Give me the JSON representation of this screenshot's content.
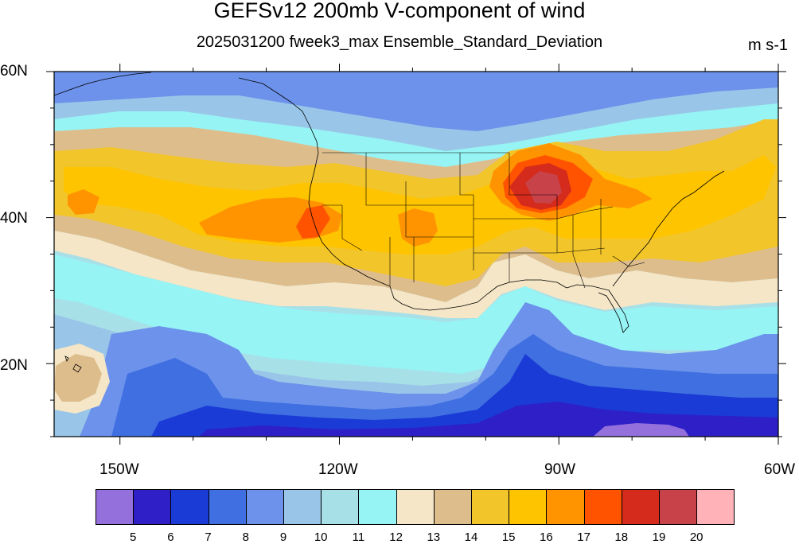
{
  "title": "GEFSv12 200mb V-component of wind",
  "subtitle": "2025031200 fweek3_max Ensemble_Standard_Deviation",
  "units": "m s-1",
  "lat_labels": [
    "60N",
    "40N",
    "20N"
  ],
  "lon_labels": [
    "150W",
    "120W",
    "90W",
    "60W"
  ],
  "colorbar": {
    "colors": [
      "#9370DB",
      "#2E1FC7",
      "#1A3BD6",
      "#3F6FE0",
      "#6C92EB",
      "#99C6E8",
      "#A8E0E8",
      "#96F4F4",
      "#F4E6C6",
      "#DEBD8D",
      "#F2C52A",
      "#FFC400",
      "#FF9400",
      "#FF5300",
      "#D52B1C",
      "#C8424A",
      "#FFB3B8"
    ],
    "labels": [
      "5",
      "6",
      "7",
      "8",
      "9",
      "10",
      "11",
      "12",
      "13",
      "14",
      "15",
      "16",
      "17",
      "18",
      "19",
      "20"
    ]
  },
  "map": {
    "projection": "cylindrical-equidistant",
    "lon_range": [
      "159W",
      "60W"
    ],
    "lat_range": [
      "10N",
      "60N"
    ],
    "field": "200mb V-component of wind ensemble standard deviation",
    "colors": {
      "bg": "#A8E0E8",
      "purple": "#9370DB",
      "dblue": "#2E1FC7",
      "blue7": "#1A3BD6",
      "blue8": "#3F6FE0",
      "blue9": "#6C92EB",
      "lblue10": "#99C6E8",
      "cyan12": "#96F4F4",
      "cream13": "#F4E6C6",
      "tan14": "#DEBD8D",
      "y15": "#F2C52A",
      "y16": "#FFC400",
      "o17": "#FF9400",
      "o18": "#FF5300",
      "r19": "#D52B1C",
      "r20": "#C8424A"
    }
  }
}
